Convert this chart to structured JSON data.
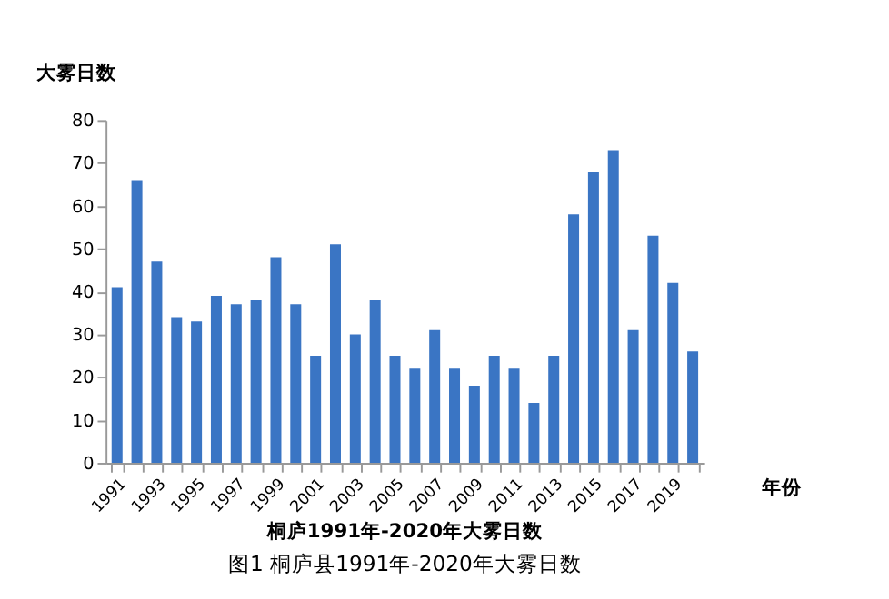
{
  "chart_data": {
    "type": "bar",
    "title": "桐庐1991年-2020年大雾日数",
    "xlabel": "年份",
    "ylabel": "大雾日数",
    "annotations": [
      "图1 桐庐县1991年-2020年大雾日数"
    ],
    "categories": [
      "1991",
      null,
      "1993",
      null,
      "1995",
      null,
      "1997",
      null,
      "1999",
      null,
      "2001",
      null,
      "2003",
      null,
      "2005",
      null,
      "2007",
      null,
      "2009",
      null,
      "2011",
      null,
      "2013",
      null,
      "2015",
      null,
      "2017",
      null,
      "2019",
      null
    ],
    "values": [
      41,
      66,
      47,
      34,
      33,
      39,
      37,
      38,
      48,
      37,
      25,
      51,
      30,
      38,
      25,
      22,
      31,
      22,
      18,
      25,
      22,
      14,
      25,
      58,
      68,
      73,
      31,
      53,
      42,
      26
    ],
    "color": "#3a75c4",
    "ylim": [
      0,
      80
    ],
    "yticks": [
      0,
      10,
      20,
      30,
      40,
      50,
      60,
      70,
      80
    ],
    "grid": false
  }
}
